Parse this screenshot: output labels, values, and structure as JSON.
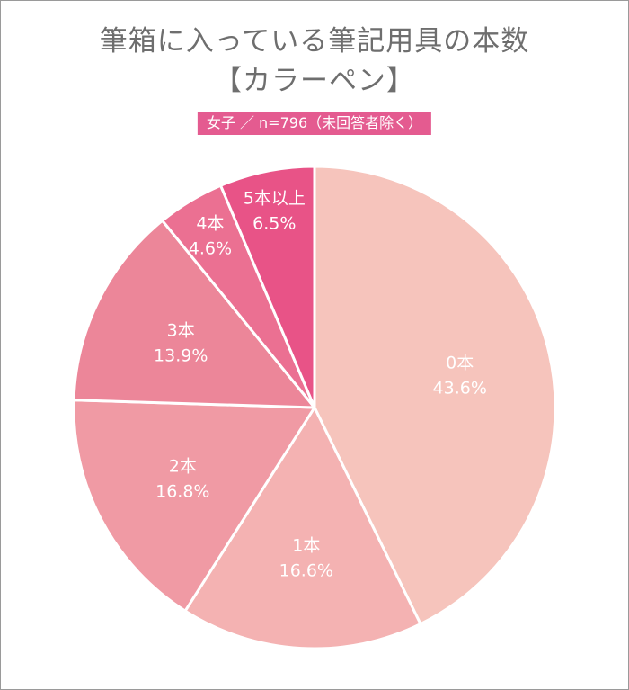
{
  "title_line1": "筆箱に入っている筆記用具の本数",
  "title_line2": "【カラーペン】",
  "subtitle": "女子 ／ n=796（未回答者除く）",
  "chart_data": {
    "type": "pie",
    "title": "筆箱に入っている筆記用具の本数【カラーペン】",
    "subtitle": "女子 ／ n=796（未回答者除く）",
    "start": "12 o'clock",
    "direction": "clockwise",
    "slices": [
      {
        "label": "0本",
        "value": 43.6,
        "value_label": "43.6%",
        "color": "#f6c4bc"
      },
      {
        "label": "1本",
        "value": 16.6,
        "value_label": "16.6%",
        "color": "#f4b2b2"
      },
      {
        "label": "2本",
        "value": 16.8,
        "value_label": "16.8%",
        "color": "#f09aa4"
      },
      {
        "label": "3本",
        "value": 13.9,
        "value_label": "13.9%",
        "color": "#ec8699"
      },
      {
        "label": "4本",
        "value": 4.6,
        "value_label": "4.6%",
        "color": "#eb7092"
      },
      {
        "label": "5本以上",
        "value": 6.5,
        "value_label": "6.5%",
        "color": "#e85387"
      }
    ]
  }
}
